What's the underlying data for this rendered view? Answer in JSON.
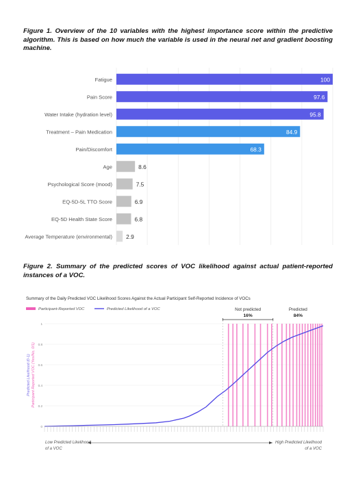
{
  "figure1": {
    "caption": "Figure 1. Overview of the 10 variables with the highest importance score within the predictive algorithm. This is based on how much the variable is used in the neural net and gradient boosting machine."
  },
  "figure2": {
    "caption": "Figure 2. Summary of the predicted scores of VOC likelihood against actual patient-reported instances of a VOC."
  },
  "chart_data": [
    {
      "type": "bar",
      "orientation": "horizontal",
      "categories": [
        "Fatigue",
        "Pain Score",
        "Water Intake (hydration level)",
        "Treatment – Pain Medication",
        "Pain/Discomfort",
        "Age",
        "Psychological Score (mood)",
        "EQ-5D-5L TTO Score",
        "EQ-5D Health State Score",
        "Average Temperature (environmental)"
      ],
      "values": [
        100,
        97.6,
        95.8,
        84.9,
        68.3,
        8.6,
        7.5,
        6.9,
        6.8,
        2.9
      ],
      "value_labels": [
        "100",
        "97.6",
        "95.8",
        "84.9",
        "68.3",
        "8.6",
        "7.5",
        "6.9",
        "6.8",
        "2.9"
      ],
      "bar_colors": [
        "#5b5ce6",
        "#5b5ce6",
        "#5b5ce6",
        "#3d96e8",
        "#3d96e8",
        "#c2c2c2",
        "#c2c2c2",
        "#c2c2c2",
        "#c2c2c2",
        "#dcdcdc"
      ],
      "xlim": [
        0,
        100
      ],
      "grid": true
    },
    {
      "type": "line",
      "title": "Summary of the Daily Predicted VOC Likelihood Scores Against the Actual Participant Self-Reported Incidence of VOCs",
      "ylabel_lines": [
        "Predicted Likelihood (0-1)",
        "Participant Reported VOC (Yes/No, 0/1)"
      ],
      "ylim": [
        0,
        1
      ],
      "yticks": [
        "0",
        "0.2",
        "0.4",
        "0.6",
        "0.8",
        "1"
      ],
      "legend": [
        {
          "name": "Participant-Reported VOC",
          "color": "#ef5fb8",
          "kind": "bar"
        },
        {
          "name": "Predicted Likelihood of a VOC",
          "color": "#4f46e5",
          "kind": "line"
        }
      ],
      "legend_placement": "top-left",
      "series": [
        {
          "name": "Predicted Likelihood of a VOC",
          "color": "#4f46e5",
          "x": [
            0,
            0.05,
            0.1,
            0.15,
            0.2,
            0.25,
            0.3,
            0.35,
            0.4,
            0.45,
            0.5,
            0.52,
            0.55,
            0.58,
            0.6,
            0.62,
            0.65,
            0.68,
            0.7,
            0.72,
            0.74,
            0.76,
            0.78,
            0.8,
            0.83,
            0.86,
            0.89,
            0.92,
            0.95,
            0.98,
            1.0
          ],
          "values": [
            0.0,
            0.003,
            0.006,
            0.01,
            0.013,
            0.017,
            0.022,
            0.028,
            0.035,
            0.05,
            0.08,
            0.1,
            0.14,
            0.19,
            0.24,
            0.29,
            0.35,
            0.42,
            0.47,
            0.52,
            0.57,
            0.62,
            0.67,
            0.72,
            0.78,
            0.83,
            0.87,
            0.9,
            0.93,
            0.96,
            0.98
          ]
        }
      ],
      "voc_events_x": [
        0.66,
        0.676,
        0.69,
        0.712,
        0.73,
        0.755,
        0.775,
        0.8,
        0.815,
        0.835,
        0.852,
        0.868,
        0.88,
        0.892,
        0.905,
        0.915,
        0.925,
        0.935,
        0.945,
        0.955,
        0.963,
        0.972,
        0.98,
        0.988,
        0.995
      ],
      "regions": [
        {
          "label": "Not predicted",
          "value": "16%",
          "x_start": 0.64,
          "x_end": 0.82
        },
        {
          "label": "Predicted",
          "value": "84%",
          "x_start": 0.82,
          "x_end": 1.0
        }
      ],
      "axis_left_label_lines": [
        "Low Predicted Likelihood",
        "of a VOC"
      ],
      "axis_right_label_lines": [
        "High Predicted Likelihood",
        "of a VOC"
      ]
    }
  ]
}
